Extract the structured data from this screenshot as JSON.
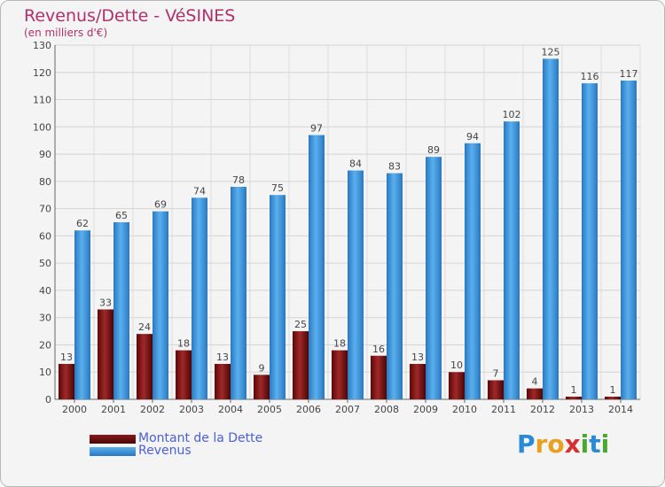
{
  "header": {
    "title": "Revenus/Dette - VéSINES",
    "subtitle": "(en milliers d'€)"
  },
  "chart_data": {
    "type": "bar",
    "title": "Revenus/Dette - VéSINES",
    "subtitle": "(en milliers d'€)",
    "categories": [
      "2000",
      "2001",
      "2002",
      "2003",
      "2004",
      "2005",
      "2006",
      "2007",
      "2008",
      "2009",
      "2010",
      "2011",
      "2012",
      "2013",
      "2014"
    ],
    "series": [
      {
        "name": "Montant de la Dette",
        "color": "#7a1010",
        "values": [
          13,
          33,
          24,
          18,
          13,
          9,
          25,
          18,
          16,
          13,
          10,
          7,
          4,
          1,
          1
        ]
      },
      {
        "name": "Revenus",
        "color": "#3a8fd8",
        "values": [
          62,
          65,
          69,
          74,
          78,
          75,
          97,
          84,
          83,
          89,
          94,
          102,
          125,
          116,
          117
        ]
      }
    ],
    "ylim": [
      0,
      130
    ],
    "yticks": [
      0,
      10,
      20,
      30,
      40,
      50,
      60,
      70,
      80,
      90,
      100,
      110,
      120,
      130
    ],
    "grid": true,
    "legend": "bottom-left"
  },
  "legend": {
    "items": [
      {
        "label": "Montant de la Dette",
        "color": "#7a1010"
      },
      {
        "label": "Revenus",
        "color": "#3a8fd8"
      }
    ]
  },
  "logo": {
    "letters": [
      "P",
      "r",
      "o",
      "x",
      "i",
      "t",
      "i"
    ],
    "colors": [
      "#2a8ad8",
      "#e8a020",
      "#e8a020",
      "#d83030",
      "#4aa830",
      "#2a8ad8",
      "#4aa830"
    ]
  }
}
